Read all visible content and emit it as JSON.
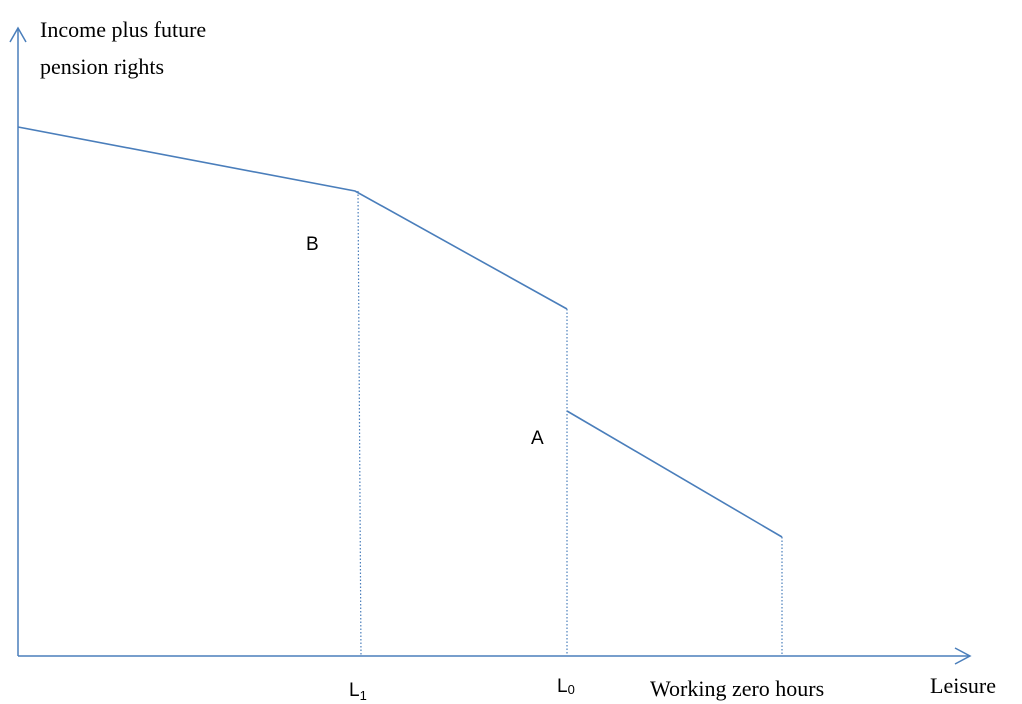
{
  "axes": {
    "y_label": [
      "Income plus future",
      "pension rights"
    ],
    "x_label": "Leisure"
  },
  "points": {
    "B": "B",
    "A": "A"
  },
  "x_markers": {
    "L1": {
      "main": "L",
      "sub": "1"
    },
    "L0": {
      "main": "L",
      "sub": "0"
    },
    "end": "Working zero hours"
  }
}
